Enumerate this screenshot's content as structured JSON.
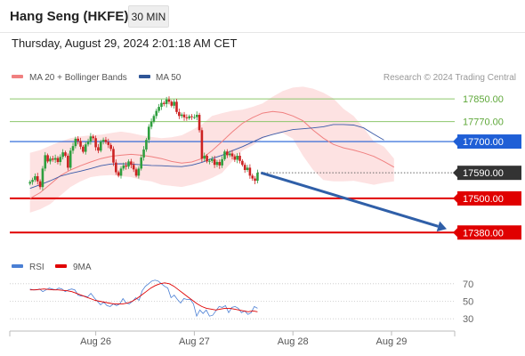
{
  "header": {
    "title": "Hang Seng (HKFE)",
    "timeframe": "30 MIN",
    "datetime": "Thursday, August 29, 2024 2:01:18 AM CET"
  },
  "legend": {
    "items": [
      {
        "label": "MA 20 + Bollinger Bands",
        "color": "#f08080"
      },
      {
        "label": "MA 50",
        "color": "#2f5597"
      }
    ],
    "credit": "Research © 2024 Trading Central"
  },
  "colors": {
    "bullish": "#2e9e3e",
    "bearish": "#cc2222",
    "band_fill": "#fde2e2",
    "ma20": "#f08080",
    "ma50": "#3a5aa8",
    "resistance": "#8dc66b",
    "pivot": "#1f5fd6",
    "support": "#e00000",
    "current": "#333333",
    "arrow": "#2f5fa8",
    "rsi": "#4a7fd4",
    "rsi_ma": "#e00000"
  },
  "chart_data": [
    {
      "type": "candlestick",
      "y_range": [
        17290,
        17960
      ],
      "x_range": [
        -8,
        168
      ],
      "x_ticks": [
        {
          "label": "Aug 26",
          "x": 26
        },
        {
          "label": "Aug 27",
          "x": 65
        },
        {
          "label": "Aug 28",
          "x": 104
        },
        {
          "label": "Aug 29",
          "x": 143
        }
      ],
      "levels": [
        {
          "label": "17850.00",
          "value": 17850,
          "kind": "resistance"
        },
        {
          "label": "17770.00",
          "value": 17770,
          "kind": "resistance"
        },
        {
          "label": "17700.00",
          "value": 17700,
          "kind": "pivot"
        },
        {
          "label": "17590.00",
          "value": 17590,
          "kind": "current"
        },
        {
          "label": "17500.00",
          "value": 17500,
          "kind": "support"
        },
        {
          "label": "17380.00",
          "value": 17380,
          "kind": "support"
        }
      ],
      "closes": [
        17558,
        17565,
        17578,
        17560,
        17540,
        17605,
        17652,
        17630,
        17640,
        17636,
        17642,
        17628,
        17646,
        17662,
        17650,
        17608,
        17668,
        17684,
        17710,
        17702,
        17682,
        17664,
        17690,
        17700,
        17718,
        17712,
        17680,
        17668,
        17700,
        17706,
        17698,
        17688,
        17674,
        17626,
        17592,
        17580,
        17605,
        17616,
        17612,
        17630,
        17618,
        17602,
        17580,
        17605,
        17644,
        17672,
        17706,
        17752,
        17770,
        17790,
        17808,
        17822,
        17836,
        17832,
        17848,
        17840,
        17826,
        17840,
        17804,
        17790,
        17795,
        17785,
        17782,
        17789,
        17786,
        17786,
        17794,
        17740,
        17640,
        17650,
        17630,
        17632,
        17638,
        17618,
        17628,
        17616,
        17638,
        17665,
        17652,
        17658,
        17648,
        17636,
        17650,
        17632,
        17618,
        17600,
        17608,
        17580,
        17570,
        17562,
        17590
      ],
      "bb_upper": [
        17660,
        17670,
        17685,
        17700,
        17712,
        17718,
        17722,
        17724,
        17730,
        17735,
        17730,
        17722,
        17716,
        17712,
        17715,
        17722,
        17740,
        17760,
        17790,
        17800,
        17808,
        17812,
        17822,
        17834,
        17858,
        17878,
        17890,
        17893,
        17886,
        17872,
        17852,
        17815,
        17790,
        17748,
        17700,
        17682,
        17640
      ],
      "bb_lower": [
        17450,
        17462,
        17480,
        17510,
        17540,
        17560,
        17575,
        17580,
        17582,
        17578,
        17575,
        17565,
        17560,
        17548,
        17544,
        17540,
        17548,
        17558,
        17572,
        17590,
        17630,
        17668,
        17686,
        17710,
        17725,
        17730,
        17710,
        17650,
        17600,
        17565,
        17560,
        17560,
        17562,
        17555,
        17548,
        17555,
        17560
      ],
      "ma20": [
        17500,
        17520,
        17550,
        17580,
        17600,
        17615,
        17628,
        17640,
        17648,
        17652,
        17655,
        17652,
        17647,
        17640,
        17630,
        17624,
        17628,
        17640,
        17668,
        17700,
        17734,
        17764,
        17784,
        17800,
        17806,
        17802,
        17790,
        17773,
        17740,
        17712,
        17690,
        17678,
        17670,
        17660,
        17648,
        17630,
        17610
      ],
      "ma50": [
        17535,
        17548,
        17562,
        17578,
        17588,
        17596,
        17605,
        17615,
        17621,
        17622,
        17621,
        17618,
        17616,
        17615,
        17613,
        17612,
        17617,
        17627,
        17640,
        17652,
        17668,
        17682,
        17698,
        17715,
        17725,
        17734,
        17742,
        17745,
        17748,
        17752,
        17760,
        17760,
        17758,
        17748,
        17726,
        17705
      ]
    },
    {
      "type": "line",
      "series": [
        {
          "name": "RSI",
          "values": [
            64,
            63,
            63,
            64,
            61,
            63,
            65,
            64,
            63,
            65,
            64,
            61,
            63,
            64,
            63,
            57,
            56,
            56,
            55,
            59,
            54,
            50,
            46,
            49,
            45,
            44,
            47,
            45,
            47,
            53,
            48,
            47,
            50,
            54,
            51,
            62,
            67,
            70,
            73,
            74,
            73,
            70,
            67,
            65,
            54,
            57,
            52,
            48,
            53,
            52,
            52,
            47,
            33,
            40,
            36,
            40,
            33,
            34,
            39,
            44,
            43,
            45,
            37,
            43,
            44,
            42,
            37,
            39,
            35,
            37,
            44,
            42
          ]
        },
        {
          "name": "9MA",
          "values": [
            63,
            63,
            63.5,
            64,
            63.5,
            63,
            63,
            62.5,
            62,
            61,
            59,
            57,
            55,
            53,
            51,
            50,
            49,
            48,
            47,
            47,
            47,
            48,
            50,
            53,
            57,
            61,
            65,
            68,
            70,
            71,
            70,
            67,
            63,
            59,
            55,
            51,
            47,
            44,
            42,
            41,
            40,
            41,
            42,
            42,
            41,
            40,
            39,
            38,
            39,
            38
          ]
        }
      ],
      "y_ticks": [
        {
          "label": "70",
          "value": 70
        },
        {
          "label": "50",
          "value": 50
        },
        {
          "label": "30",
          "value": 30
        }
      ],
      "y_range": [
        18,
        84
      ]
    }
  ]
}
